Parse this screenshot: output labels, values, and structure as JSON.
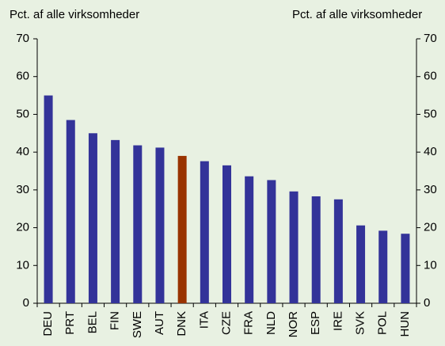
{
  "chart_data": {
    "type": "bar",
    "ylabel": "Pct. af alle virksomheder",
    "y2label": "Pct. af alle virksomheder",
    "categories": [
      "DEU",
      "PRT",
      "BEL",
      "FIN",
      "SWE",
      "AUT",
      "DNK",
      "ITA",
      "CZE",
      "FRA",
      "NLD",
      "NOR",
      "ESP",
      "IRE",
      "SVK",
      "POL",
      "HUN"
    ],
    "values": [
      55,
      48.5,
      45,
      43.2,
      41.8,
      41.2,
      39,
      37.6,
      36.5,
      33.6,
      32.6,
      29.6,
      28.3,
      27.5,
      20.6,
      19.2,
      18.4
    ],
    "colors": [
      "#333399",
      "#333399",
      "#333399",
      "#333399",
      "#333399",
      "#333399",
      "#993300",
      "#333399",
      "#333399",
      "#333399",
      "#333399",
      "#333399",
      "#333399",
      "#333399",
      "#333399",
      "#333399",
      "#333399"
    ],
    "ylim": [
      0,
      70
    ],
    "yticks": [
      0,
      10,
      20,
      30,
      40,
      50,
      60,
      70
    ],
    "y2lim": [
      0,
      70
    ],
    "y2ticks": [
      0,
      10,
      20,
      30,
      40,
      50,
      60,
      70
    ],
    "grid": false
  }
}
